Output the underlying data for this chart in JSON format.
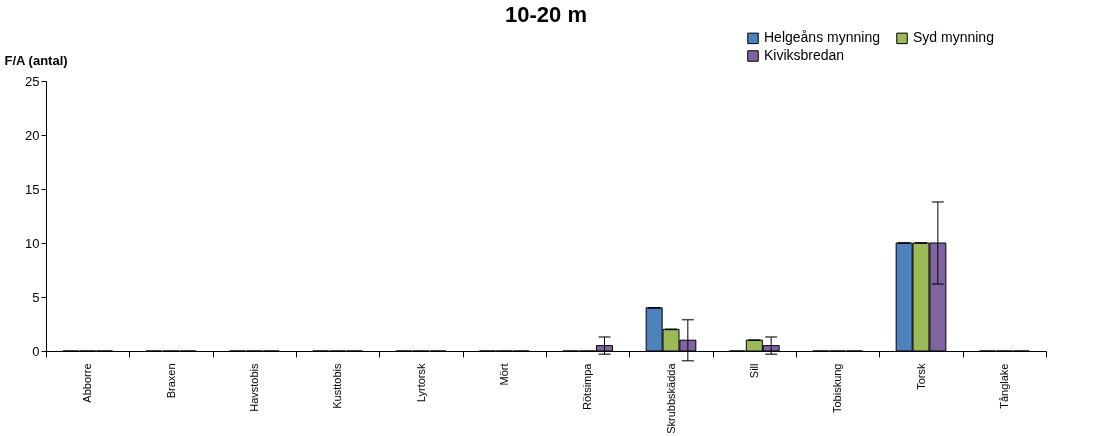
{
  "chart_data": {
    "type": "bar",
    "title": "10-20 m",
    "ylabel": "F/A (antal)",
    "categories": [
      "Abborre",
      "Braxen",
      "Havstobis",
      "Kusttobis",
      "Lyrtorsk",
      "Mört",
      "Rötsimpa",
      "Skrubbskädda",
      "Sill",
      "Tobiskung",
      "Torsk",
      "Tånglake"
    ],
    "series": [
      {
        "name": "Helgeåns mynning",
        "color": "#4f81bd",
        "values": [
          0,
          0,
          0,
          0,
          0,
          0,
          0,
          4,
          0,
          0,
          10,
          0
        ],
        "errors": [
          null,
          null,
          null,
          null,
          null,
          null,
          null,
          0,
          null,
          null,
          0,
          null
        ]
      },
      {
        "name": "Syd mynning",
        "color": "#9bbb59",
        "values": [
          0,
          0,
          0,
          0,
          0,
          0,
          0,
          2,
          1,
          0,
          10,
          0
        ],
        "errors": [
          null,
          null,
          null,
          null,
          null,
          null,
          null,
          0,
          0,
          null,
          0,
          null
        ]
      },
      {
        "name": "Kiviksbredan",
        "color": "#8064a2",
        "values": [
          0,
          0,
          0,
          0,
          0,
          0,
          0.5,
          1,
          0.5,
          0,
          10,
          0
        ],
        "errors": [
          null,
          null,
          null,
          null,
          null,
          null,
          0.8,
          1.9,
          0.8,
          null,
          3.8,
          null
        ]
      }
    ],
    "ylim": [
      0,
      25
    ],
    "yticks": [
      0,
      5,
      10,
      15,
      20,
      25
    ],
    "grid": false,
    "legend": "top right"
  }
}
